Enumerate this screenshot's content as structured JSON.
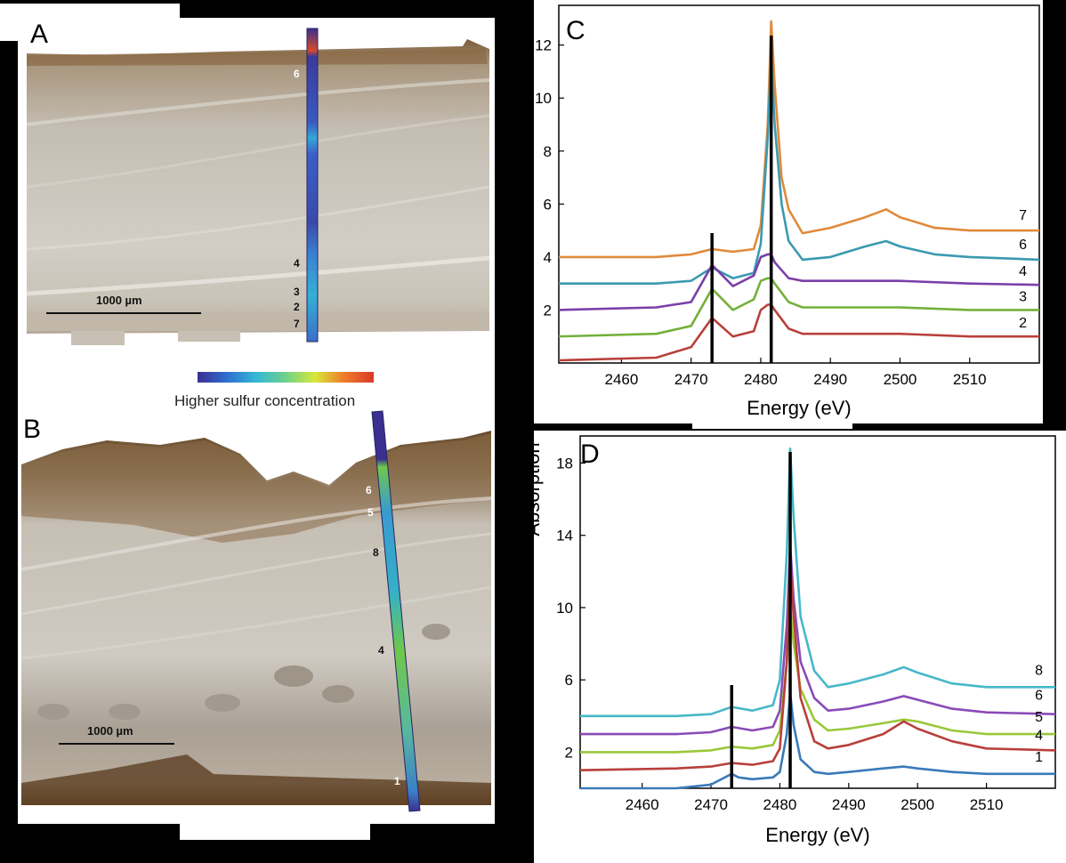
{
  "panels": {
    "A": {
      "label": "A",
      "scale_bar": "1000 µm",
      "point_labels": [
        "6",
        "4",
        "3",
        "2",
        "7"
      ]
    },
    "B": {
      "label": "B",
      "scale_bar": "1000 µm",
      "point_labels": [
        "6",
        "5",
        "8",
        "4",
        "1"
      ]
    },
    "C": {
      "label": "C"
    },
    "D": {
      "label": "D"
    }
  },
  "colorbar": {
    "label": "Higher sulfur concentration",
    "colors": [
      "#3b2f8f",
      "#2f6fd0",
      "#34b8d6",
      "#6fd08a",
      "#d8e83a",
      "#f07a2a",
      "#d83a2a"
    ]
  },
  "chart_data": [
    {
      "type": "line",
      "panel": "C",
      "xlabel": "Energy (eV)",
      "ylabel": "",
      "xlim": [
        2451,
        2520
      ],
      "ylim": [
        0,
        13.5
      ],
      "xticks": [
        2460,
        2470,
        2480,
        2490,
        2500,
        2510
      ],
      "yticks": [
        2,
        4,
        6,
        8,
        10,
        12
      ],
      "vlines": [
        2473,
        2481.5
      ],
      "series": [
        {
          "name": "7",
          "color": "#e08a3a",
          "x": [
            2451,
            2465,
            2470,
            2473,
            2476,
            2479,
            2480,
            2481,
            2481.5,
            2482,
            2483,
            2484,
            2486,
            2490,
            2495,
            2498,
            2500,
            2505,
            2510,
            2520
          ],
          "y": [
            4.0,
            4.0,
            4.1,
            4.3,
            4.2,
            4.3,
            5.2,
            9.0,
            12.9,
            10.5,
            7.0,
            5.8,
            4.9,
            5.1,
            5.5,
            5.8,
            5.5,
            5.1,
            5.0,
            5.0
          ]
        },
        {
          "name": "6",
          "color": "#3a9ab0",
          "x": [
            2451,
            2465,
            2470,
            2473,
            2476,
            2479,
            2480,
            2481,
            2481.5,
            2482,
            2483,
            2484,
            2486,
            2490,
            2495,
            2498,
            2500,
            2505,
            2510,
            2520
          ],
          "y": [
            3.0,
            3.0,
            3.1,
            3.6,
            3.2,
            3.4,
            4.5,
            8.5,
            11.6,
            9.0,
            6.0,
            4.6,
            3.9,
            4.0,
            4.4,
            4.6,
            4.4,
            4.1,
            4.0,
            3.9
          ]
        },
        {
          "name": "4",
          "color": "#7a3fa8",
          "x": [
            2451,
            2465,
            2470,
            2473,
            2476,
            2479,
            2480,
            2481,
            2481.5,
            2482,
            2484,
            2486,
            2490,
            2500,
            2510,
            2520
          ],
          "y": [
            2.0,
            2.1,
            2.3,
            3.7,
            2.9,
            3.3,
            4.0,
            4.1,
            4.1,
            3.8,
            3.2,
            3.1,
            3.1,
            3.1,
            3.0,
            2.95
          ]
        },
        {
          "name": "3",
          "color": "#74b03a",
          "x": [
            2451,
            2465,
            2470,
            2473,
            2476,
            2479,
            2480,
            2481,
            2481.5,
            2482,
            2484,
            2486,
            2490,
            2500,
            2510,
            2520
          ],
          "y": [
            1.0,
            1.1,
            1.4,
            2.8,
            2.0,
            2.4,
            3.1,
            3.2,
            3.2,
            3.0,
            2.3,
            2.1,
            2.1,
            2.1,
            2.0,
            2.0
          ]
        },
        {
          "name": "2",
          "color": "#b8403a",
          "x": [
            2451,
            2465,
            2470,
            2473,
            2476,
            2479,
            2480,
            2481,
            2481.5,
            2482,
            2484,
            2486,
            2490,
            2500,
            2510,
            2520
          ],
          "y": [
            0.1,
            0.2,
            0.6,
            1.7,
            1.0,
            1.2,
            2.0,
            2.2,
            2.2,
            2.0,
            1.3,
            1.1,
            1.1,
            1.1,
            1.0,
            1.0
          ]
        }
      ]
    },
    {
      "type": "line",
      "panel": "D",
      "xlabel": "Energy (eV)",
      "ylabel": "Absorption",
      "xlim": [
        2451,
        2520
      ],
      "ylim": [
        0,
        19.5
      ],
      "xticks": [
        2460,
        2470,
        2480,
        2490,
        2500,
        2510
      ],
      "yticks": [
        2,
        6,
        10,
        14,
        18
      ],
      "vlines": [
        2473,
        2481.5
      ],
      "series": [
        {
          "name": "8",
          "color": "#47b8c8",
          "x": [
            2451,
            2465,
            2470,
            2473,
            2476,
            2479,
            2480,
            2481,
            2481.5,
            2482,
            2483,
            2485,
            2487,
            2490,
            2495,
            2498,
            2500,
            2505,
            2510,
            2520
          ],
          "y": [
            4.0,
            4.0,
            4.1,
            4.5,
            4.3,
            4.6,
            6.0,
            13.0,
            18.8,
            15.0,
            9.5,
            6.5,
            5.6,
            5.8,
            6.3,
            6.7,
            6.4,
            5.8,
            5.6,
            5.6
          ]
        },
        {
          "name": "6",
          "color": "#8a4ab8",
          "x": [
            2451,
            2465,
            2470,
            2473,
            2476,
            2479,
            2480,
            2481,
            2481.5,
            2482,
            2483,
            2485,
            2487,
            2490,
            2495,
            2498,
            2500,
            2505,
            2510,
            2520
          ],
          "y": [
            3.0,
            3.0,
            3.1,
            3.4,
            3.2,
            3.4,
            4.3,
            9.0,
            13.5,
            10.5,
            7.0,
            5.0,
            4.3,
            4.4,
            4.8,
            5.1,
            4.9,
            4.4,
            4.2,
            4.1
          ]
        },
        {
          "name": "5",
          "color": "#9ac83a",
          "x": [
            2451,
            2465,
            2470,
            2473,
            2476,
            2479,
            2480,
            2481,
            2481.5,
            2482,
            2483,
            2485,
            2487,
            2490,
            2495,
            2498,
            2500,
            2505,
            2510,
            2520
          ],
          "y": [
            2.0,
            2.0,
            2.1,
            2.3,
            2.2,
            2.4,
            3.2,
            7.0,
            10.0,
            8.0,
            5.5,
            3.8,
            3.2,
            3.3,
            3.6,
            3.8,
            3.7,
            3.2,
            3.0,
            3.0
          ]
        },
        {
          "name": "4",
          "color": "#b8403a",
          "x": [
            2451,
            2465,
            2470,
            2473,
            2476,
            2479,
            2480,
            2481,
            2481.5,
            2482,
            2483,
            2485,
            2487,
            2490,
            2495,
            2498,
            2500,
            2505,
            2510,
            2520
          ],
          "y": [
            1.0,
            1.1,
            1.2,
            1.4,
            1.3,
            1.5,
            2.2,
            7.0,
            12.5,
            9.5,
            5.0,
            2.6,
            2.2,
            2.4,
            3.0,
            3.7,
            3.3,
            2.6,
            2.2,
            2.1
          ]
        },
        {
          "name": "1",
          "color": "#3a7ab8",
          "x": [
            2451,
            2465,
            2470,
            2473,
            2474,
            2476,
            2479,
            2480,
            2481,
            2481.5,
            2482,
            2483,
            2485,
            2487,
            2490,
            2495,
            2498,
            2500,
            2505,
            2510,
            2520
          ],
          "y": [
            0.0,
            0.0,
            0.2,
            0.8,
            0.6,
            0.5,
            0.6,
            0.9,
            3.0,
            5.3,
            3.5,
            1.6,
            0.9,
            0.8,
            0.9,
            1.1,
            1.2,
            1.1,
            0.9,
            0.8,
            0.8
          ]
        }
      ]
    }
  ]
}
